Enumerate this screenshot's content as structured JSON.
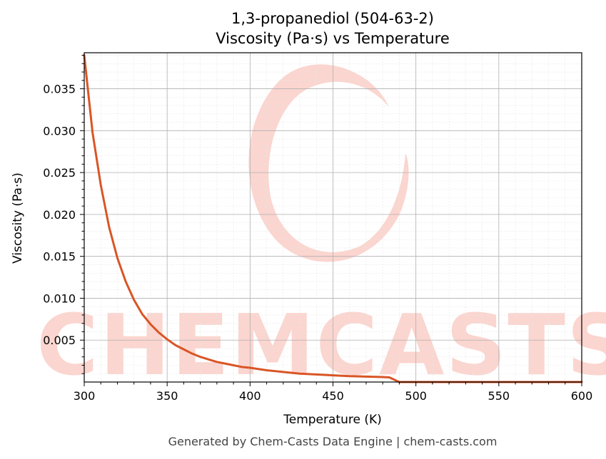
{
  "chart_data": {
    "type": "line",
    "title": "1,3-propanediol (504-63-2)",
    "subtitle": "Viscosity (Pa·s) vs Temperature",
    "xlabel": "Temperature (K)",
    "ylabel": "Viscosity (Pa·s)",
    "xlim": [
      300,
      600
    ],
    "ylim": [
      0.0,
      0.0393
    ],
    "xticks": [
      300,
      350,
      400,
      450,
      500,
      550,
      600
    ],
    "xtick_labels": [
      "300",
      "350",
      "400",
      "450",
      "500",
      "550",
      "600"
    ],
    "yticks": [
      0.005,
      0.01,
      0.015,
      0.02,
      0.025,
      0.03,
      0.035
    ],
    "ytick_labels": [
      "0.005",
      "0.010",
      "0.015",
      "0.020",
      "0.025",
      "0.030",
      "0.035"
    ],
    "grid": true,
    "line_color": "#d95525",
    "series": [
      {
        "x": [
          300,
          305,
          310,
          315,
          320,
          325,
          330,
          335,
          340,
          345,
          350,
          355,
          360,
          365,
          370,
          375,
          380,
          385,
          390,
          395,
          400,
          410,
          420,
          430,
          440,
          450,
          460,
          470,
          480,
          484,
          490,
          500,
          520,
          540,
          560,
          580,
          600
        ],
        "y": [
          0.039,
          0.0298,
          0.0235,
          0.0185,
          0.0148,
          0.012,
          0.0098,
          0.0081,
          0.0069,
          0.0059,
          0.0051,
          0.0044,
          0.0039,
          0.0034,
          0.003,
          0.0027,
          0.0024,
          0.0022,
          0.002,
          0.0018,
          0.0017,
          0.0014,
          0.0012,
          0.001,
          0.0009,
          0.0008,
          0.0007,
          0.00065,
          0.0006,
          0.00055,
          0.0,
          0.0,
          0.0,
          0.0,
          0.0,
          0.0,
          0.0
        ]
      }
    ]
  },
  "watermark": {
    "text": "CHEMCASTS",
    "color": "#fbd5cf"
  },
  "footer": {
    "text": "Generated by Chem-Casts Data Engine | chem-casts.com"
  }
}
